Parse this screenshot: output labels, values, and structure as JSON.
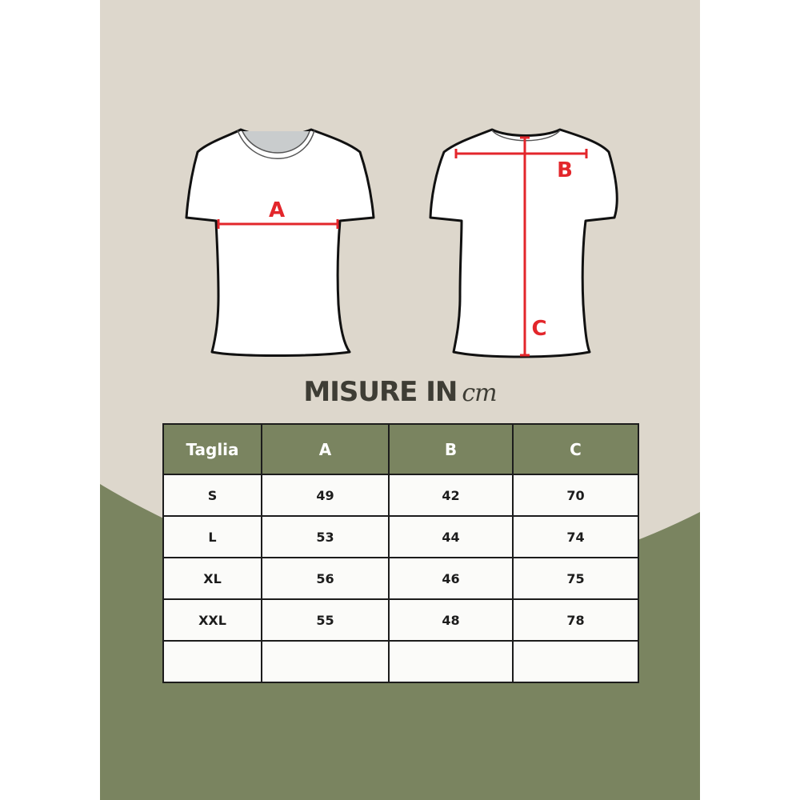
{
  "colors": {
    "background": "#ddd7cc",
    "accent_green": "#7a8460",
    "measure_red": "#e3262b",
    "text_dark": "#3e3d35"
  },
  "diagram": {
    "label_a": "A",
    "label_b": "B",
    "label_c": "C"
  },
  "title": {
    "main": "MISURE IN",
    "unit": "cm"
  },
  "table": {
    "headers": [
      "Taglia",
      "A",
      "B",
      "C"
    ],
    "rows": [
      [
        "S",
        "49",
        "42",
        "70"
      ],
      [
        "L",
        "53",
        "44",
        "74"
      ],
      [
        "XL",
        "56",
        "46",
        "75"
      ],
      [
        "XXL",
        "55",
        "48",
        "78"
      ],
      [
        "",
        "",
        "",
        ""
      ]
    ]
  }
}
